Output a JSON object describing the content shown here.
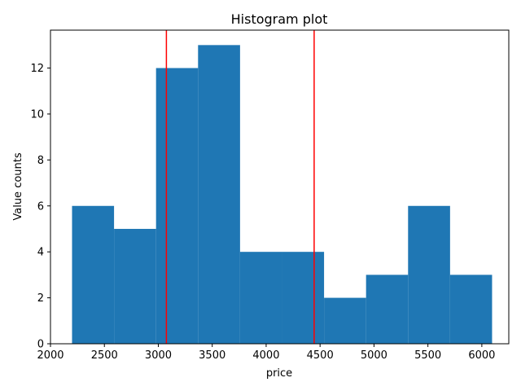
{
  "chart_data": {
    "type": "bar",
    "title": "Histogram plot",
    "xlabel": "price",
    "ylabel": "Value counts",
    "bar_color": "#1f77b4",
    "line_color": "#ff0000",
    "bins": [
      {
        "x0": 2200,
        "x1": 2589.5,
        "count": 6
      },
      {
        "x0": 2589.5,
        "x1": 2979,
        "count": 5
      },
      {
        "x0": 2979,
        "x1": 3368.5,
        "count": 12
      },
      {
        "x0": 3368.5,
        "x1": 3758,
        "count": 13
      },
      {
        "x0": 3758,
        "x1": 4147.5,
        "count": 4
      },
      {
        "x0": 4147.5,
        "x1": 4537,
        "count": 4
      },
      {
        "x0": 4537,
        "x1": 4926.5,
        "count": 2
      },
      {
        "x0": 4926.5,
        "x1": 5316,
        "count": 3
      },
      {
        "x0": 5316,
        "x1": 5705.5,
        "count": 6
      },
      {
        "x0": 5705.5,
        "x1": 6095,
        "count": 3
      }
    ],
    "vlines": [
      3075,
      4445
    ],
    "xlim": [
      2000,
      6250
    ],
    "ylim": [
      0,
      13.65
    ],
    "xticks": [
      2000,
      2500,
      3000,
      3500,
      4000,
      4500,
      5000,
      5500,
      6000
    ],
    "yticks": [
      0,
      2,
      4,
      6,
      8,
      10,
      12
    ],
    "grid": false,
    "legend": false
  }
}
